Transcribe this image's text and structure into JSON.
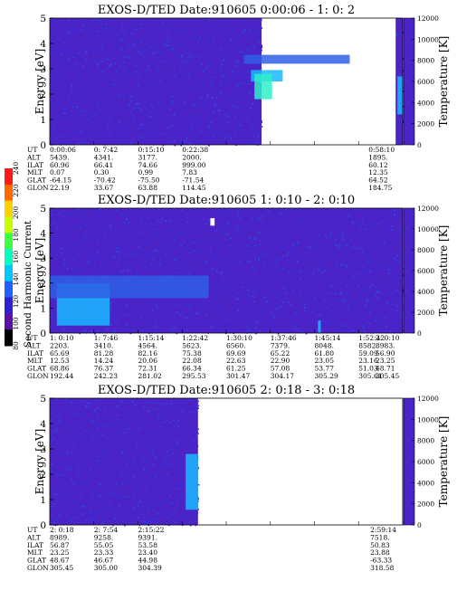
{
  "colorbar": {
    "label": "Second Harmonic Current",
    "ticks": [
      "80",
      "100",
      "120",
      "140",
      "160",
      "180",
      "200",
      "220",
      "240"
    ]
  },
  "chart_data": [
    {
      "type": "heatmap",
      "title": "EXOS-D/TED   Date:910605  0:00:06 - 1: 0: 2",
      "ylabel": "Energy [eV]",
      "y2label": "Temperature [K]",
      "ylim": [
        0,
        5
      ],
      "y2lim": [
        0,
        12000
      ],
      "yticks": [
        "0",
        "1",
        "2",
        "3",
        "4",
        "5"
      ],
      "y2ticks": [
        "0",
        "2000",
        "4000",
        "6000",
        "8000",
        "10000",
        "12000"
      ],
      "data_coverage": [
        [
          0.0,
          0.6
        ],
        [
          0.98,
          1.0
        ]
      ],
      "features": [
        {
          "x": 0.55,
          "y": 3.2,
          "w": 0.3,
          "h": 0.35,
          "level": "medium"
        },
        {
          "x": 0.57,
          "y": 2.5,
          "w": 0.09,
          "h": 0.45,
          "level": "high"
        },
        {
          "x": 0.58,
          "y": 1.8,
          "w": 0.05,
          "h": 1.0,
          "level": "max"
        },
        {
          "x": 0.985,
          "y": 1.2,
          "w": 0.015,
          "h": 1.5,
          "level": "high"
        }
      ],
      "orbit": {
        "labels": [
          "UT",
          "ALT",
          "ILAT",
          "MLT",
          "GLAT",
          "GLON"
        ],
        "columns": [
          {
            "pos": 0.0,
            "values": [
              "0:00:06",
              "5439.",
              "60.96",
              "0.07",
              "-64.15",
              "22.19"
            ]
          },
          {
            "pos": 0.125,
            "values": [
              "0: 7:42",
              "4341.",
              "66.41",
              "0.30",
              "-70.42",
              "33.67"
            ]
          },
          {
            "pos": 0.25,
            "values": [
              "0:15:10",
              "3177.",
              "74.66",
              "0.99",
              "-75.50",
              "63.88"
            ]
          },
          {
            "pos": 0.375,
            "values": [
              "0:22:38",
              "2000.",
              "999.00",
              "7.83",
              "-71.54",
              "114.45"
            ]
          },
          {
            "pos": 0.98,
            "values": [
              "0:58:10",
              "1895.",
              "60.12",
              "12.35",
              "64.52",
              "184.75"
            ]
          }
        ]
      }
    },
    {
      "type": "heatmap",
      "title": "EXOS-D/TED   Date:910605  1: 0:10 - 2: 0:10",
      "ylabel": "Energy [eV]",
      "y2label": "Temperature [K]",
      "ylim": [
        0,
        5
      ],
      "y2lim": [
        0,
        12000
      ],
      "yticks": [
        "0",
        "1",
        "2",
        "3",
        "4",
        "5"
      ],
      "y2ticks": [
        "0",
        "2000",
        "4000",
        "6000",
        "8000",
        "10000",
        "12000"
      ],
      "data_coverage": [
        [
          0.0,
          1.0
        ]
      ],
      "features": [
        {
          "x": 0.02,
          "y": 0.3,
          "w": 0.15,
          "h": 1.7,
          "level": "high"
        },
        {
          "x": 0.0,
          "y": 1.4,
          "w": 0.45,
          "h": 0.9,
          "level": "medium"
        },
        {
          "x": 0.455,
          "y": 4.3,
          "w": 0.012,
          "h": 0.3,
          "level": "white"
        },
        {
          "x": 0.76,
          "y": 0.0,
          "w": 0.008,
          "h": 0.5,
          "level": "high"
        }
      ],
      "orbit": {
        "labels": [
          "UT",
          "ALT",
          "ILAT",
          "MLT",
          "GLAT",
          "GLON"
        ],
        "columns": [
          {
            "pos": 0.0,
            "values": [
              "1: 0:10",
              "2203.",
              "65.69",
              "12.53",
              "68.86",
              "192.44"
            ]
          },
          {
            "pos": 0.125,
            "values": [
              "1: 7:46",
              "3410.",
              "81.28",
              "14.24",
              "76.37",
              "242.23"
            ]
          },
          {
            "pos": 0.25,
            "values": [
              "1:15:14",
              "4564.",
              "82.16",
              "20.06",
              "72.31",
              "281.02"
            ]
          },
          {
            "pos": 0.375,
            "values": [
              "1:22:42",
              "5623.",
              "75.38",
              "22.08",
              "66.34",
              "295.53"
            ]
          },
          {
            "pos": 0.5,
            "values": [
              "1:30:10",
              "6560.",
              "69.69",
              "22.63",
              "61.25",
              "301.47"
            ]
          },
          {
            "pos": 0.625,
            "values": [
              "1:37:46",
              "7379.",
              "65.22",
              "22.90",
              "57.08",
              "304.17"
            ]
          },
          {
            "pos": 0.75,
            "values": [
              "1:45:14",
              "8048.",
              "61.80",
              "23.05",
              "53.77",
              "305.29"
            ]
          },
          {
            "pos": 0.875,
            "values": [
              "1:52:42",
              "8582.",
              "59.09",
              "23.16",
              "51.03",
              "305.61"
            ]
          },
          {
            "pos": 1.0,
            "values": [
              "2: 0:10",
              "8983.",
              "56.90",
              "23.25",
              "48.71",
              "305.45"
            ]
          }
        ]
      }
    },
    {
      "type": "heatmap",
      "title": "EXOS-D/TED   Date:910605  2: 0:18 - 3: 0:18",
      "ylabel": "Energy [eV]",
      "y2label": "Temperature [K]",
      "ylim": [
        0,
        5
      ],
      "y2lim": [
        0,
        12000
      ],
      "yticks": [
        "0",
        "1",
        "2",
        "3",
        "4",
        "5"
      ],
      "y2ticks": [
        "0",
        "2000",
        "4000",
        "6000",
        "8000",
        "10000",
        "12000"
      ],
      "data_coverage": [
        [
          0.0,
          0.42
        ]
      ],
      "features": [
        {
          "x": 0.385,
          "y": 0.6,
          "w": 0.035,
          "h": 2.2,
          "level": "high"
        }
      ],
      "orbit": {
        "labels": [
          "UT",
          "ALT",
          "ILAT",
          "MLT",
          "GLAT",
          "GLON"
        ],
        "columns": [
          {
            "pos": 0.0,
            "values": [
              "2: 0:18",
              "8989.",
              "56.87",
              "23.25",
              "48.67",
              "305.45"
            ]
          },
          {
            "pos": 0.125,
            "values": [
              "2: 7:54",
              "9258.",
              "55.05",
              "23.33",
              "46.67",
              "305.00"
            ]
          },
          {
            "pos": 0.25,
            "values": [
              "2:15:22",
              "9391.",
              "53.58",
              "23.40",
              "44.98",
              "304.39"
            ]
          },
          {
            "pos": 0.985,
            "values": [
              "2:59:14",
              "7518.",
              "50.83",
              "23.88",
              "-63.33",
              "318.58"
            ]
          }
        ]
      }
    }
  ]
}
